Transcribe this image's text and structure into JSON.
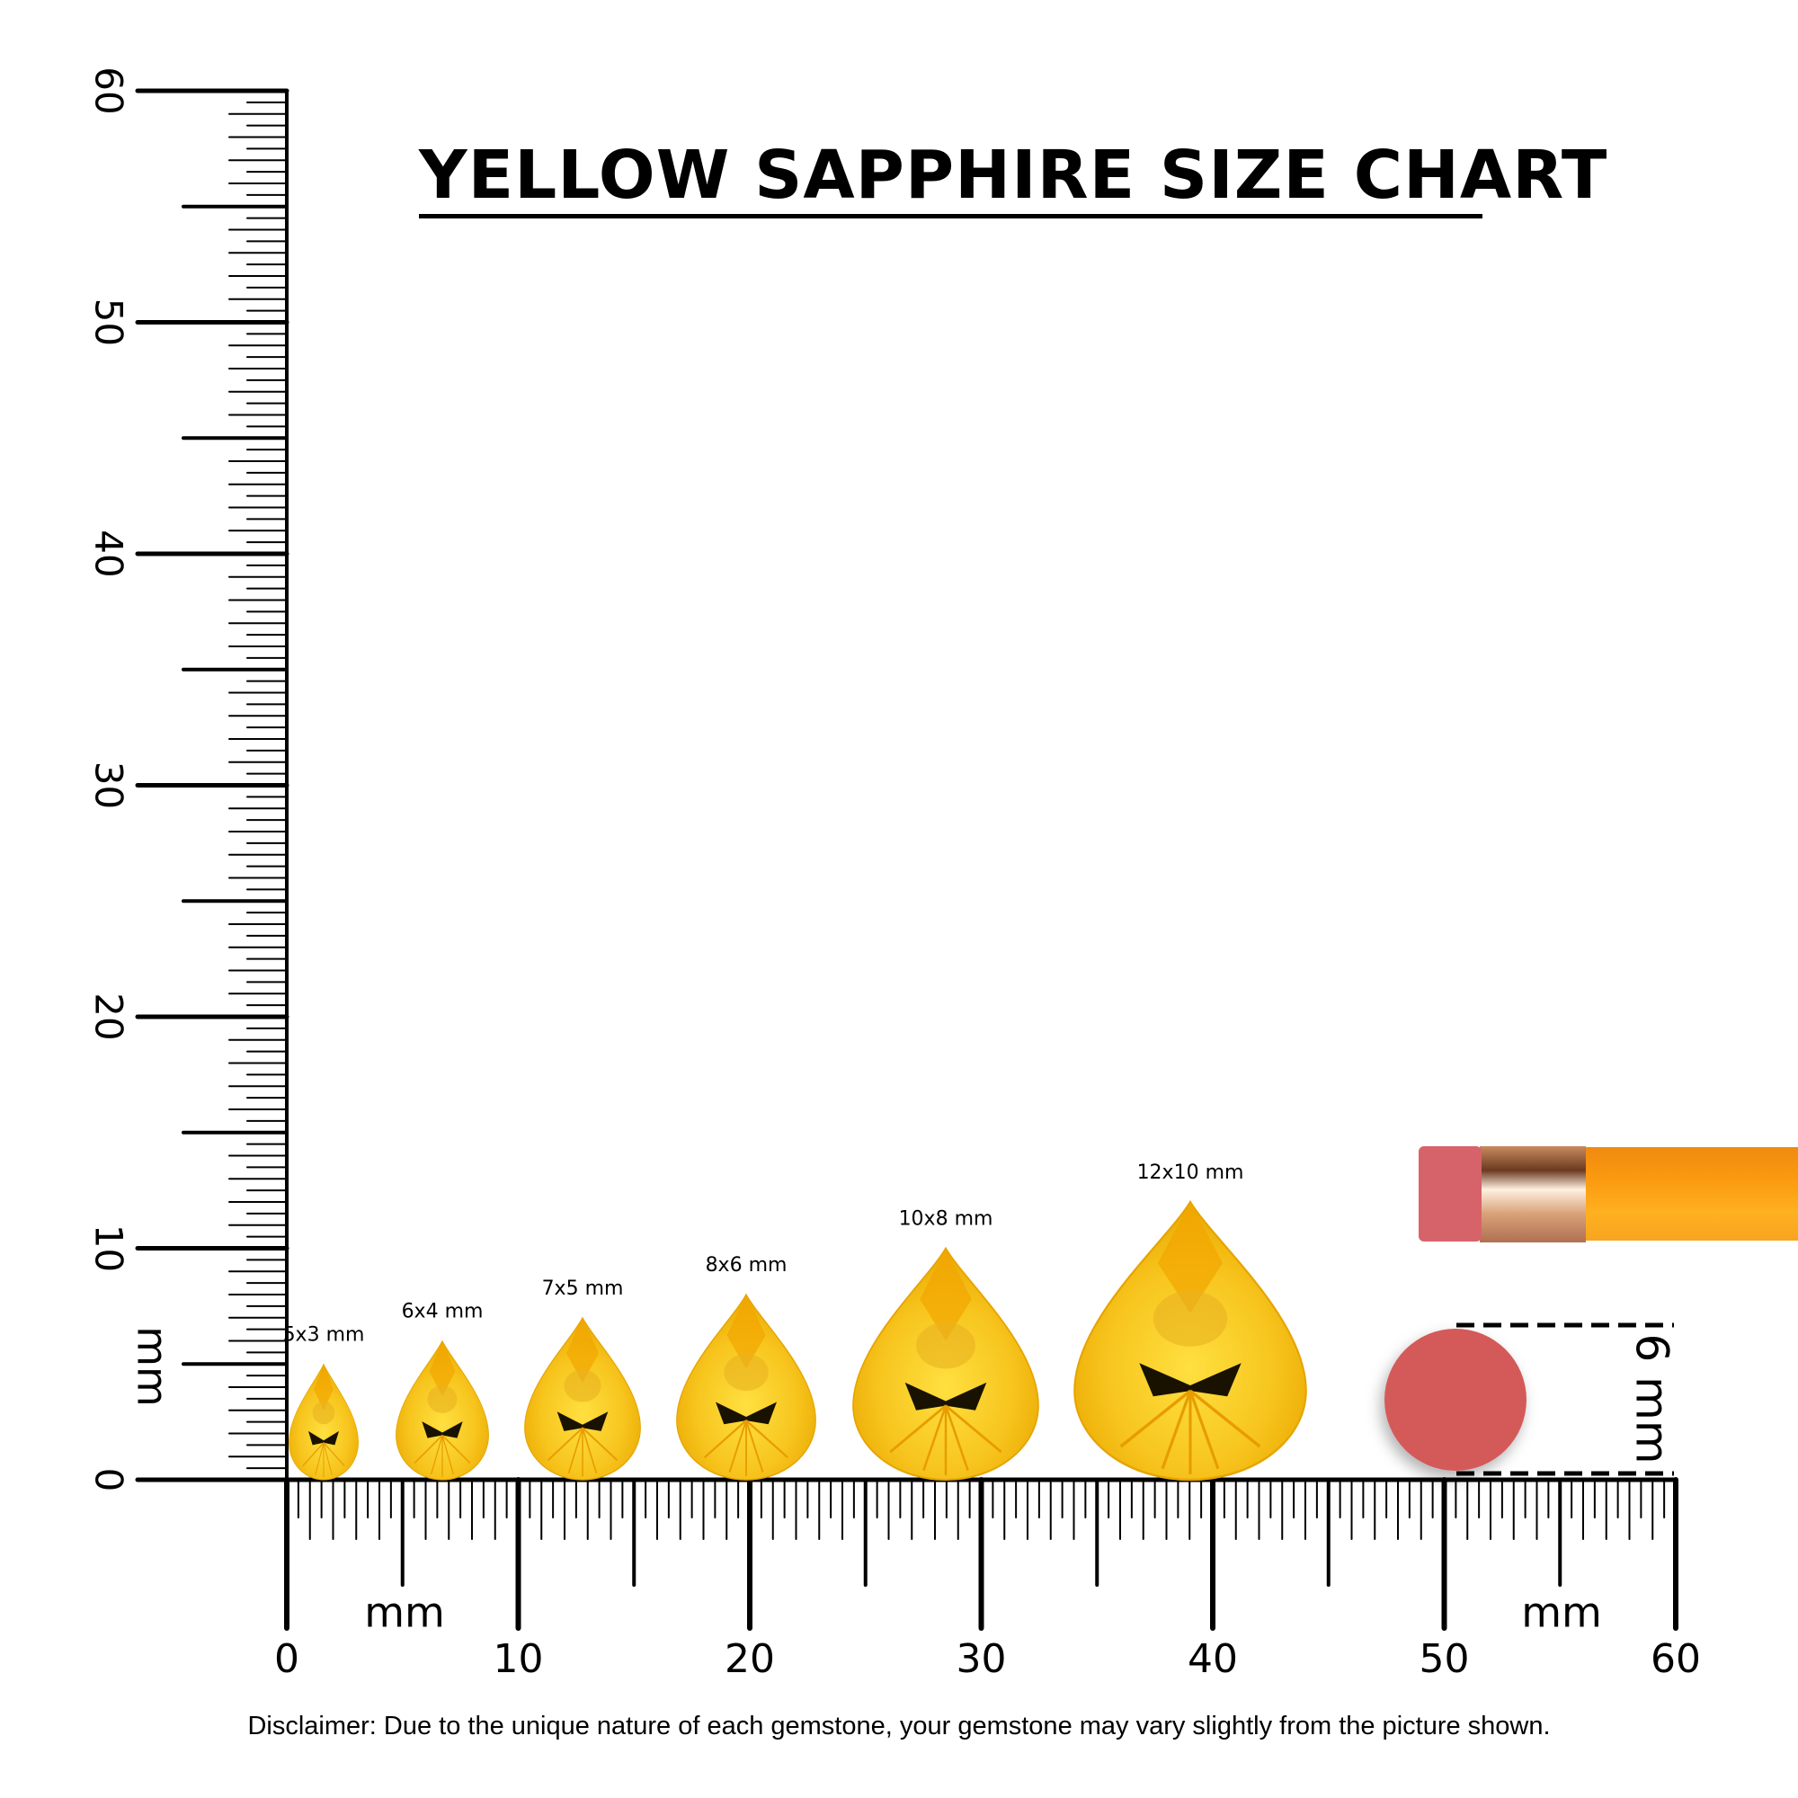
{
  "title": "YELLOW SAPPHIRE SIZE CHART",
  "disclaimer": "Disclaimer: Due to the unique nature of each gemstone, your gemstone may vary slightly from the picture shown.",
  "vertical_ruler": {
    "unit_label": "mm",
    "labels": [
      "0",
      "10",
      "20",
      "30",
      "40",
      "50",
      "60"
    ],
    "range_mm": [
      0,
      60
    ]
  },
  "horizontal_ruler": {
    "unit_label": "mm",
    "labels": [
      "0",
      "10",
      "20",
      "30",
      "40",
      "50",
      "60"
    ],
    "range_mm": [
      0,
      60
    ]
  },
  "gems": [
    {
      "label": "5x3 mm",
      "length_mm": 5,
      "width_mm": 3
    },
    {
      "label": "6x4 mm",
      "length_mm": 6,
      "width_mm": 4
    },
    {
      "label": "7x5 mm",
      "length_mm": 7,
      "width_mm": 5
    },
    {
      "label": "8x6 mm",
      "length_mm": 8,
      "width_mm": 6
    },
    {
      "label": "10x8 mm",
      "length_mm": 10,
      "width_mm": 8
    },
    {
      "label": "12x10 mm",
      "length_mm": 12,
      "width_mm": 10
    }
  ],
  "reference": {
    "object": "pencil eraser",
    "label": "6 mm",
    "diameter_mm": 6
  },
  "colors": {
    "gem": "#f7c51e",
    "gem_dark": "#e59a00",
    "eraser": "#d45a5a",
    "pencil": "#fb9a10",
    "ferrule": "#d9a27a"
  }
}
